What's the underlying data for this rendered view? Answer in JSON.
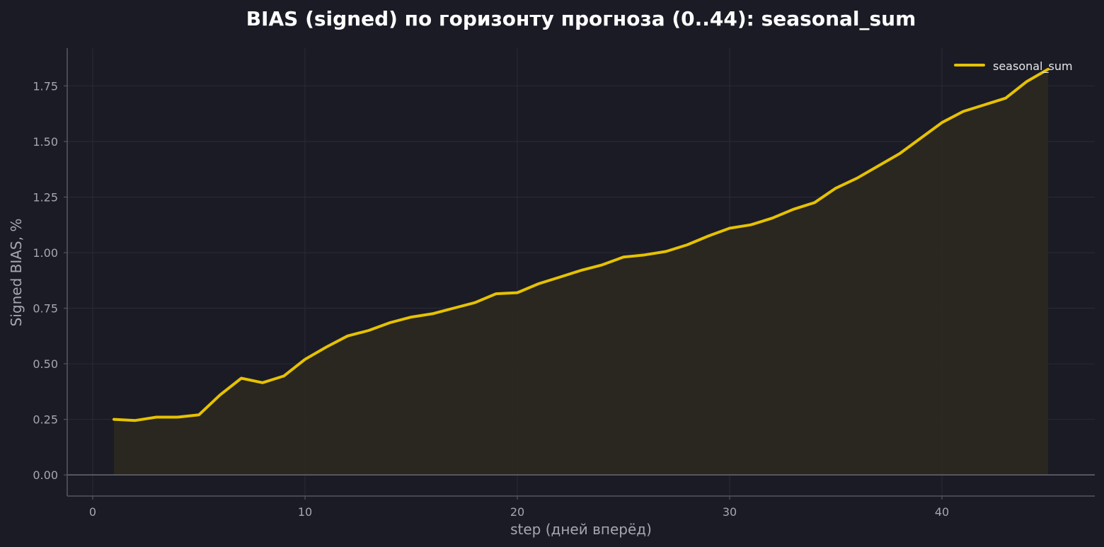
{
  "chart_data": {
    "type": "line",
    "title": "BIAS (signed) по горизонту прогноза (0..44): seasonal_sum",
    "xlabel": "step (дней вперёд)",
    "ylabel": "Signed BIAS, %",
    "xlim": [
      -1.2,
      47.2
    ],
    "ylim": [
      -0.095,
      1.92
    ],
    "xticks": [
      0,
      10,
      20,
      30,
      40
    ],
    "yticks": [
      0.0,
      0.25,
      0.5,
      0.75,
      1.0,
      1.25,
      1.5,
      1.75
    ],
    "xtick_labels": [
      "0",
      "10",
      "20",
      "30",
      "40"
    ],
    "ytick_labels": [
      "0.00",
      "0.25",
      "0.50",
      "0.75",
      "1.00",
      "1.25",
      "1.50",
      "1.75"
    ],
    "grid": true,
    "legend_position": "top-right",
    "fill_under_line": true,
    "colors": {
      "background": "#1b1b26",
      "line": "#e6c200",
      "fill": "#2a2820"
    },
    "series": [
      {
        "name": "seasonal_sum",
        "x": [
          1,
          2,
          3,
          4,
          5,
          6,
          7,
          8,
          9,
          10,
          11,
          12,
          13,
          14,
          15,
          16,
          17,
          18,
          19,
          20,
          21,
          22,
          23,
          24,
          25,
          26,
          27,
          28,
          29,
          30,
          31,
          32,
          33,
          34,
          35,
          36,
          37,
          38,
          39,
          40,
          41,
          42,
          43,
          44,
          45
        ],
        "values": [
          0.25,
          0.245,
          0.26,
          0.26,
          0.27,
          0.36,
          0.435,
          0.415,
          0.445,
          0.52,
          0.575,
          0.625,
          0.65,
          0.685,
          0.71,
          0.725,
          0.75,
          0.775,
          0.815,
          0.82,
          0.86,
          0.89,
          0.92,
          0.945,
          0.98,
          0.99,
          1.005,
          1.035,
          1.075,
          1.11,
          1.125,
          1.155,
          1.195,
          1.225,
          1.29,
          1.335,
          1.39,
          1.445,
          1.515,
          1.585,
          1.635,
          1.665,
          1.695,
          1.77,
          1.825
        ]
      }
    ]
  }
}
